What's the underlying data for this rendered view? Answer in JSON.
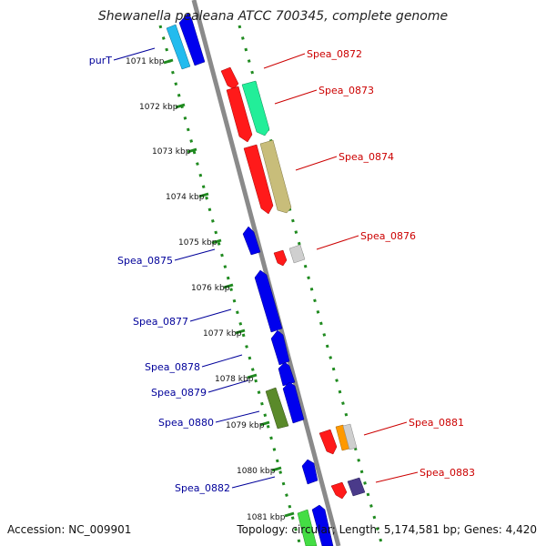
{
  "title": "Shewanella pealeana ATCC 700345, complete genome",
  "footer": {
    "accession": "Accession: NC_009901",
    "stats": "Topology: circular; Length: 5,174,581 bp; Genes: 4,420"
  },
  "colors": {
    "backbone": "#8a8a8a",
    "dots": "#1f8a1f",
    "forward_label": "#cc0000",
    "reverse_label": "#00009a"
  },
  "ticks": [
    "1071 kbp",
    "1072 kbp",
    "1073 kbp",
    "1074 kbp",
    "1075 kbp",
    "1076 kbp",
    "1077 kbp",
    "1078 kbp",
    "1079 kbp",
    "1080 kbp",
    "1081 kbp"
  ],
  "forward_labels": [
    "Spea_0872",
    "Spea_0873",
    "Spea_0874",
    "Spea_0876",
    "Spea_0881",
    "Spea_0883"
  ],
  "reverse_labels": [
    "purT",
    "Spea_0875",
    "Spea_0877",
    "Spea_0878",
    "Spea_0879",
    "Spea_0880",
    "Spea_0882"
  ]
}
